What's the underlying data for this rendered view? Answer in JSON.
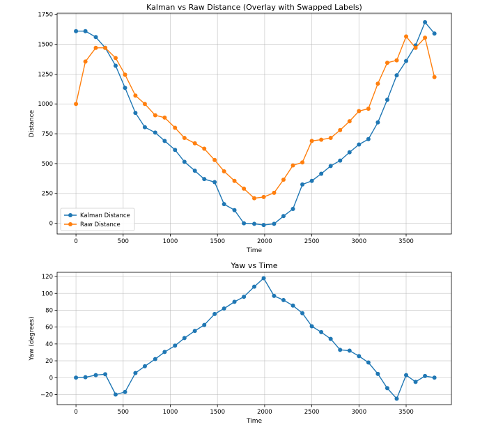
{
  "chart_data": [
    {
      "type": "line",
      "title": "Kalman vs Raw Distance (Overlay with Swapped Labels)",
      "xlabel": "Time",
      "ylabel": "Distance",
      "xlim": [
        -200,
        3980
      ],
      "ylim": [
        -90,
        1760
      ],
      "xticks": [
        0,
        500,
        1000,
        1500,
        2000,
        2500,
        3000,
        3500
      ],
      "yticks": [
        0,
        250,
        500,
        750,
        1000,
        1250,
        1500,
        1750
      ],
      "grid": true,
      "legend": "lower-left",
      "x": [
        0,
        100,
        210,
        310,
        420,
        520,
        630,
        730,
        840,
        940,
        1050,
        1150,
        1260,
        1360,
        1470,
        1570,
        1680,
        1780,
        1890,
        1990,
        2100,
        2200,
        2300,
        2400,
        2500,
        2600,
        2700,
        2800,
        2900,
        3000,
        3100,
        3200,
        3300,
        3400,
        3500,
        3600,
        3700,
        3800
      ],
      "series": [
        {
          "name": "Kalman Distance",
          "color": "#1f77b4",
          "values": [
            1610,
            1610,
            1560,
            1470,
            1320,
            1135,
            925,
            805,
            760,
            690,
            615,
            515,
            440,
            370,
            345,
            160,
            110,
            0,
            -5,
            -15,
            -5,
            60,
            120,
            325,
            355,
            415,
            480,
            525,
            595,
            660,
            705,
            845,
            1035,
            1240,
            1360,
            1490,
            1685,
            1590
          ]
        },
        {
          "name": "Raw Distance",
          "color": "#ff7f0e",
          "values": [
            1000,
            1355,
            1470,
            1470,
            1385,
            1245,
            1070,
            1000,
            905,
            885,
            800,
            715,
            670,
            625,
            530,
            435,
            355,
            290,
            210,
            220,
            255,
            365,
            485,
            510,
            690,
            700,
            715,
            780,
            855,
            940,
            960,
            1170,
            1345,
            1365,
            1565,
            1470,
            1555,
            1225
          ]
        }
      ]
    },
    {
      "type": "line",
      "title": "Yaw vs Time",
      "xlabel": "Time",
      "ylabel": "Yaw (degrees)",
      "xlim": [
        -200,
        3980
      ],
      "ylim": [
        -32,
        125
      ],
      "xticks": [
        0,
        500,
        1000,
        1500,
        2000,
        2500,
        3000,
        3500
      ],
      "yticks": [
        -20,
        0,
        20,
        40,
        60,
        80,
        100,
        120
      ],
      "tick_labels_y": [
        "−20",
        "0",
        "20",
        "40",
        "60",
        "80",
        "100",
        "120"
      ],
      "grid": true,
      "x": [
        0,
        100,
        210,
        310,
        420,
        520,
        630,
        730,
        840,
        940,
        1050,
        1150,
        1260,
        1360,
        1470,
        1570,
        1680,
        1780,
        1890,
        1990,
        2100,
        2200,
        2300,
        2400,
        2500,
        2600,
        2700,
        2800,
        2900,
        3000,
        3100,
        3200,
        3300,
        3400,
        3500,
        3600,
        3700,
        3800
      ],
      "series": [
        {
          "color": "#1f77b4",
          "values": [
            0,
            0.5,
            3,
            4,
            -20,
            -17,
            5.5,
            13.5,
            22,
            30.5,
            38,
            47,
            55.5,
            62.5,
            75.5,
            82,
            90,
            96,
            108,
            118,
            97,
            92,
            85.5,
            76.5,
            61,
            54,
            46,
            33,
            32,
            25.5,
            18,
            4.5,
            -12.5,
            -25,
            3,
            -5,
            2,
            0
          ]
        }
      ]
    }
  ]
}
